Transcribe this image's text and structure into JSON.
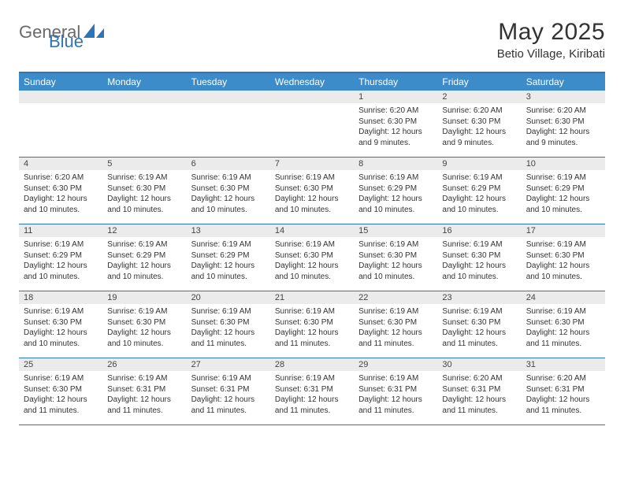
{
  "brand": {
    "part1": "General",
    "part2": "Blue"
  },
  "title": "May 2025",
  "location": "Betio Village, Kiribati",
  "colors": {
    "header_bg": "#3c8cc9",
    "border": "#2e75b6",
    "daynum_bg": "#ebebeb",
    "text": "#333333",
    "brand_gray": "#6a6a6a",
    "brand_blue": "#2e75b6"
  },
  "dow": [
    "Sunday",
    "Monday",
    "Tuesday",
    "Wednesday",
    "Thursday",
    "Friday",
    "Saturday"
  ],
  "weeks": [
    [
      {
        "n": "",
        "sunrise": "",
        "sunset": "",
        "daylight": ""
      },
      {
        "n": "",
        "sunrise": "",
        "sunset": "",
        "daylight": ""
      },
      {
        "n": "",
        "sunrise": "",
        "sunset": "",
        "daylight": ""
      },
      {
        "n": "",
        "sunrise": "",
        "sunset": "",
        "daylight": ""
      },
      {
        "n": "1",
        "sunrise": "Sunrise: 6:20 AM",
        "sunset": "Sunset: 6:30 PM",
        "daylight": "Daylight: 12 hours and 9 minutes."
      },
      {
        "n": "2",
        "sunrise": "Sunrise: 6:20 AM",
        "sunset": "Sunset: 6:30 PM",
        "daylight": "Daylight: 12 hours and 9 minutes."
      },
      {
        "n": "3",
        "sunrise": "Sunrise: 6:20 AM",
        "sunset": "Sunset: 6:30 PM",
        "daylight": "Daylight: 12 hours and 9 minutes."
      }
    ],
    [
      {
        "n": "4",
        "sunrise": "Sunrise: 6:20 AM",
        "sunset": "Sunset: 6:30 PM",
        "daylight": "Daylight: 12 hours and 10 minutes."
      },
      {
        "n": "5",
        "sunrise": "Sunrise: 6:19 AM",
        "sunset": "Sunset: 6:30 PM",
        "daylight": "Daylight: 12 hours and 10 minutes."
      },
      {
        "n": "6",
        "sunrise": "Sunrise: 6:19 AM",
        "sunset": "Sunset: 6:30 PM",
        "daylight": "Daylight: 12 hours and 10 minutes."
      },
      {
        "n": "7",
        "sunrise": "Sunrise: 6:19 AM",
        "sunset": "Sunset: 6:30 PM",
        "daylight": "Daylight: 12 hours and 10 minutes."
      },
      {
        "n": "8",
        "sunrise": "Sunrise: 6:19 AM",
        "sunset": "Sunset: 6:29 PM",
        "daylight": "Daylight: 12 hours and 10 minutes."
      },
      {
        "n": "9",
        "sunrise": "Sunrise: 6:19 AM",
        "sunset": "Sunset: 6:29 PM",
        "daylight": "Daylight: 12 hours and 10 minutes."
      },
      {
        "n": "10",
        "sunrise": "Sunrise: 6:19 AM",
        "sunset": "Sunset: 6:29 PM",
        "daylight": "Daylight: 12 hours and 10 minutes."
      }
    ],
    [
      {
        "n": "11",
        "sunrise": "Sunrise: 6:19 AM",
        "sunset": "Sunset: 6:29 PM",
        "daylight": "Daylight: 12 hours and 10 minutes."
      },
      {
        "n": "12",
        "sunrise": "Sunrise: 6:19 AM",
        "sunset": "Sunset: 6:29 PM",
        "daylight": "Daylight: 12 hours and 10 minutes."
      },
      {
        "n": "13",
        "sunrise": "Sunrise: 6:19 AM",
        "sunset": "Sunset: 6:29 PM",
        "daylight": "Daylight: 12 hours and 10 minutes."
      },
      {
        "n": "14",
        "sunrise": "Sunrise: 6:19 AM",
        "sunset": "Sunset: 6:30 PM",
        "daylight": "Daylight: 12 hours and 10 minutes."
      },
      {
        "n": "15",
        "sunrise": "Sunrise: 6:19 AM",
        "sunset": "Sunset: 6:30 PM",
        "daylight": "Daylight: 12 hours and 10 minutes."
      },
      {
        "n": "16",
        "sunrise": "Sunrise: 6:19 AM",
        "sunset": "Sunset: 6:30 PM",
        "daylight": "Daylight: 12 hours and 10 minutes."
      },
      {
        "n": "17",
        "sunrise": "Sunrise: 6:19 AM",
        "sunset": "Sunset: 6:30 PM",
        "daylight": "Daylight: 12 hours and 10 minutes."
      }
    ],
    [
      {
        "n": "18",
        "sunrise": "Sunrise: 6:19 AM",
        "sunset": "Sunset: 6:30 PM",
        "daylight": "Daylight: 12 hours and 10 minutes."
      },
      {
        "n": "19",
        "sunrise": "Sunrise: 6:19 AM",
        "sunset": "Sunset: 6:30 PM",
        "daylight": "Daylight: 12 hours and 10 minutes."
      },
      {
        "n": "20",
        "sunrise": "Sunrise: 6:19 AM",
        "sunset": "Sunset: 6:30 PM",
        "daylight": "Daylight: 12 hours and 11 minutes."
      },
      {
        "n": "21",
        "sunrise": "Sunrise: 6:19 AM",
        "sunset": "Sunset: 6:30 PM",
        "daylight": "Daylight: 12 hours and 11 minutes."
      },
      {
        "n": "22",
        "sunrise": "Sunrise: 6:19 AM",
        "sunset": "Sunset: 6:30 PM",
        "daylight": "Daylight: 12 hours and 11 minutes."
      },
      {
        "n": "23",
        "sunrise": "Sunrise: 6:19 AM",
        "sunset": "Sunset: 6:30 PM",
        "daylight": "Daylight: 12 hours and 11 minutes."
      },
      {
        "n": "24",
        "sunrise": "Sunrise: 6:19 AM",
        "sunset": "Sunset: 6:30 PM",
        "daylight": "Daylight: 12 hours and 11 minutes."
      }
    ],
    [
      {
        "n": "25",
        "sunrise": "Sunrise: 6:19 AM",
        "sunset": "Sunset: 6:30 PM",
        "daylight": "Daylight: 12 hours and 11 minutes."
      },
      {
        "n": "26",
        "sunrise": "Sunrise: 6:19 AM",
        "sunset": "Sunset: 6:31 PM",
        "daylight": "Daylight: 12 hours and 11 minutes."
      },
      {
        "n": "27",
        "sunrise": "Sunrise: 6:19 AM",
        "sunset": "Sunset: 6:31 PM",
        "daylight": "Daylight: 12 hours and 11 minutes."
      },
      {
        "n": "28",
        "sunrise": "Sunrise: 6:19 AM",
        "sunset": "Sunset: 6:31 PM",
        "daylight": "Daylight: 12 hours and 11 minutes."
      },
      {
        "n": "29",
        "sunrise": "Sunrise: 6:19 AM",
        "sunset": "Sunset: 6:31 PM",
        "daylight": "Daylight: 12 hours and 11 minutes."
      },
      {
        "n": "30",
        "sunrise": "Sunrise: 6:20 AM",
        "sunset": "Sunset: 6:31 PM",
        "daylight": "Daylight: 12 hours and 11 minutes."
      },
      {
        "n": "31",
        "sunrise": "Sunrise: 6:20 AM",
        "sunset": "Sunset: 6:31 PM",
        "daylight": "Daylight: 12 hours and 11 minutes."
      }
    ]
  ]
}
